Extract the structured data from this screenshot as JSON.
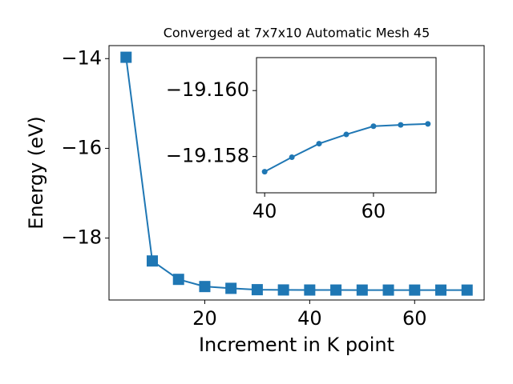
{
  "chart_data": [
    {
      "type": "line",
      "title": "Converged at 7x7x10 Automatic Mesh 45",
      "x_label": "Increment in K point",
      "y_label": "Energy (eV)",
      "x": [
        5,
        10,
        15,
        20,
        25,
        30,
        35,
        40,
        45,
        50,
        55,
        60,
        65,
        70
      ],
      "series": [
        {
          "color": "#1f77b4",
          "marker": "square",
          "values": [
            -13.97,
            -18.51,
            -18.92,
            -19.08,
            -19.12,
            -19.15,
            -19.156,
            -19.1575,
            -19.158,
            -19.1584,
            -19.1587,
            -19.1589,
            -19.159,
            -19.159
          ]
        }
      ],
      "xlim": [
        1.75,
        73.25
      ],
      "ylim": [
        -19.38,
        -13.71
      ],
      "xticks": [
        20,
        40,
        60
      ],
      "yticks": [
        {
          "value": -14,
          "label": "−14"
        },
        {
          "value": -16,
          "label": "−16"
        },
        {
          "value": -18,
          "label": "−18"
        }
      ]
    },
    {
      "type": "line",
      "x": [
        40,
        45,
        50,
        55,
        60,
        65,
        70
      ],
      "series": [
        {
          "color": "#1f77b4",
          "marker": "circle",
          "values": [
            -19.15754,
            -19.15798,
            -19.15839,
            -19.15867,
            -19.15892,
            -19.15896,
            -19.15899
          ]
        }
      ],
      "xlim": [
        38.5,
        71.5
      ],
      "ylim": [
        -19.1569,
        -19.161
      ],
      "xticks": [
        40,
        60
      ],
      "yticks": [
        {
          "value": -19.16,
          "label": "−19.160"
        },
        {
          "value": -19.158,
          "label": "−19.158"
        }
      ]
    }
  ]
}
